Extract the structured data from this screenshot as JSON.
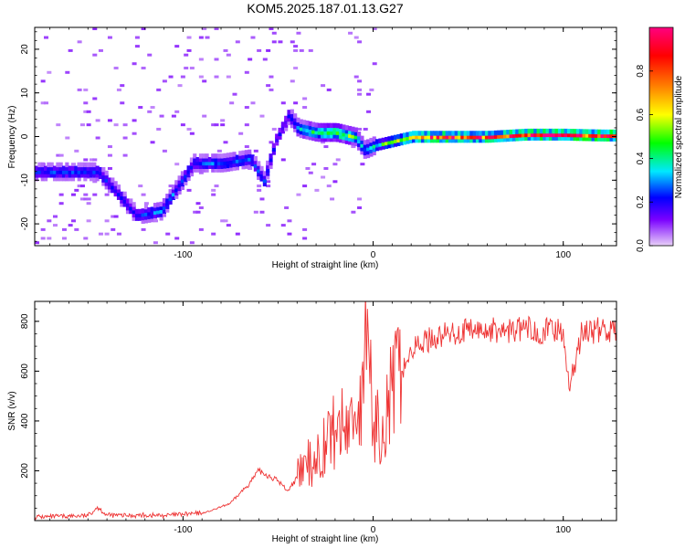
{
  "figure": {
    "title": "KOM5.2025.187.01.13.G27"
  },
  "chart_data": [
    {
      "type": "heatmap",
      "id": "spectrogram",
      "title": "KOM5.2025.187.01.13.G27",
      "xlabel": "Height of straight line (km)",
      "ylabel": "Frequency (Hz)",
      "xlim": [
        -178,
        128
      ],
      "ylim": [
        -25,
        25
      ],
      "x_ticks": [
        -100,
        0,
        100
      ],
      "y_ticks": [
        -20,
        -10,
        0,
        10,
        20
      ],
      "colorbar": {
        "label": "Normalized spectral amplitude",
        "range": [
          0,
          1
        ],
        "ticks": [
          0.0,
          0.2,
          0.4,
          0.6,
          0.8
        ],
        "colormap": [
          "#e8d0f8",
          "#7a00ff",
          "#0000ff",
          "#00e8ff",
          "#00ff00",
          "#ffff00",
          "#ff8000",
          "#ff0000",
          "#ff0080"
        ]
      },
      "ridge": [
        {
          "x": -145,
          "y": -8,
          "amp": 0.25
        },
        {
          "x": -125,
          "y": -18,
          "amp": 0.22
        },
        {
          "x": -112,
          "y": -17,
          "amp": 0.3
        },
        {
          "x": -95,
          "y": -6,
          "amp": 0.25
        },
        {
          "x": -80,
          "y": -6,
          "amp": 0.3
        },
        {
          "x": -65,
          "y": -5,
          "amp": 0.28
        },
        {
          "x": -58,
          "y": -10,
          "amp": 0.25
        },
        {
          "x": -52,
          "y": -1,
          "amp": 0.2
        },
        {
          "x": -45,
          "y": 5,
          "amp": 0.2
        },
        {
          "x": -40,
          "y": 2,
          "amp": 0.35
        },
        {
          "x": -30,
          "y": 1,
          "amp": 0.45
        },
        {
          "x": -20,
          "y": 1,
          "amp": 0.55
        },
        {
          "x": -10,
          "y": 0,
          "amp": 0.45
        },
        {
          "x": -5,
          "y": -3,
          "amp": 0.3
        },
        {
          "x": 0,
          "y": -2,
          "amp": 0.4
        },
        {
          "x": 10,
          "y": -1,
          "amp": 0.55
        },
        {
          "x": 20,
          "y": 0,
          "amp": 0.75
        },
        {
          "x": 40,
          "y": 0,
          "amp": 0.85
        },
        {
          "x": 60,
          "y": 0,
          "amp": 0.8
        },
        {
          "x": 80,
          "y": 0.5,
          "amp": 0.85
        },
        {
          "x": 100,
          "y": 0.5,
          "amp": 0.9
        },
        {
          "x": 120,
          "y": 0.3,
          "amp": 0.85
        }
      ]
    },
    {
      "type": "line",
      "id": "snr",
      "xlabel": "Height of straight line (km)",
      "ylabel": "SNR (v/v)",
      "xlim": [
        -178,
        128
      ],
      "ylim": [
        0,
        880
      ],
      "x_ticks": [
        -100,
        0,
        100
      ],
      "y_ticks": [
        200,
        400,
        600,
        800
      ],
      "color": "#ee3333",
      "series": [
        {
          "x": [
            -178,
            -170,
            -160,
            -150,
            -145,
            -140,
            -130,
            -120,
            -110,
            -100,
            -90,
            -85,
            -80,
            -75,
            -70,
            -65,
            -60,
            -55,
            -50,
            -45,
            -40,
            -35,
            -30,
            -25,
            -20,
            -15,
            -10,
            -5,
            -3,
            0,
            5,
            10,
            15,
            20,
            25,
            30,
            40,
            50,
            60,
            70,
            80,
            90,
            100,
            103,
            110,
            120,
            128
          ],
          "y": [
            15,
            15,
            18,
            20,
            55,
            22,
            20,
            22,
            20,
            25,
            30,
            40,
            55,
            70,
            110,
            150,
            200,
            180,
            160,
            120,
            170,
            220,
            250,
            320,
            360,
            380,
            420,
            470,
            850,
            350,
            420,
            520,
            600,
            680,
            710,
            730,
            750,
            760,
            765,
            760,
            770,
            760,
            770,
            530,
            760,
            765,
            760
          ]
        }
      ]
    }
  ]
}
